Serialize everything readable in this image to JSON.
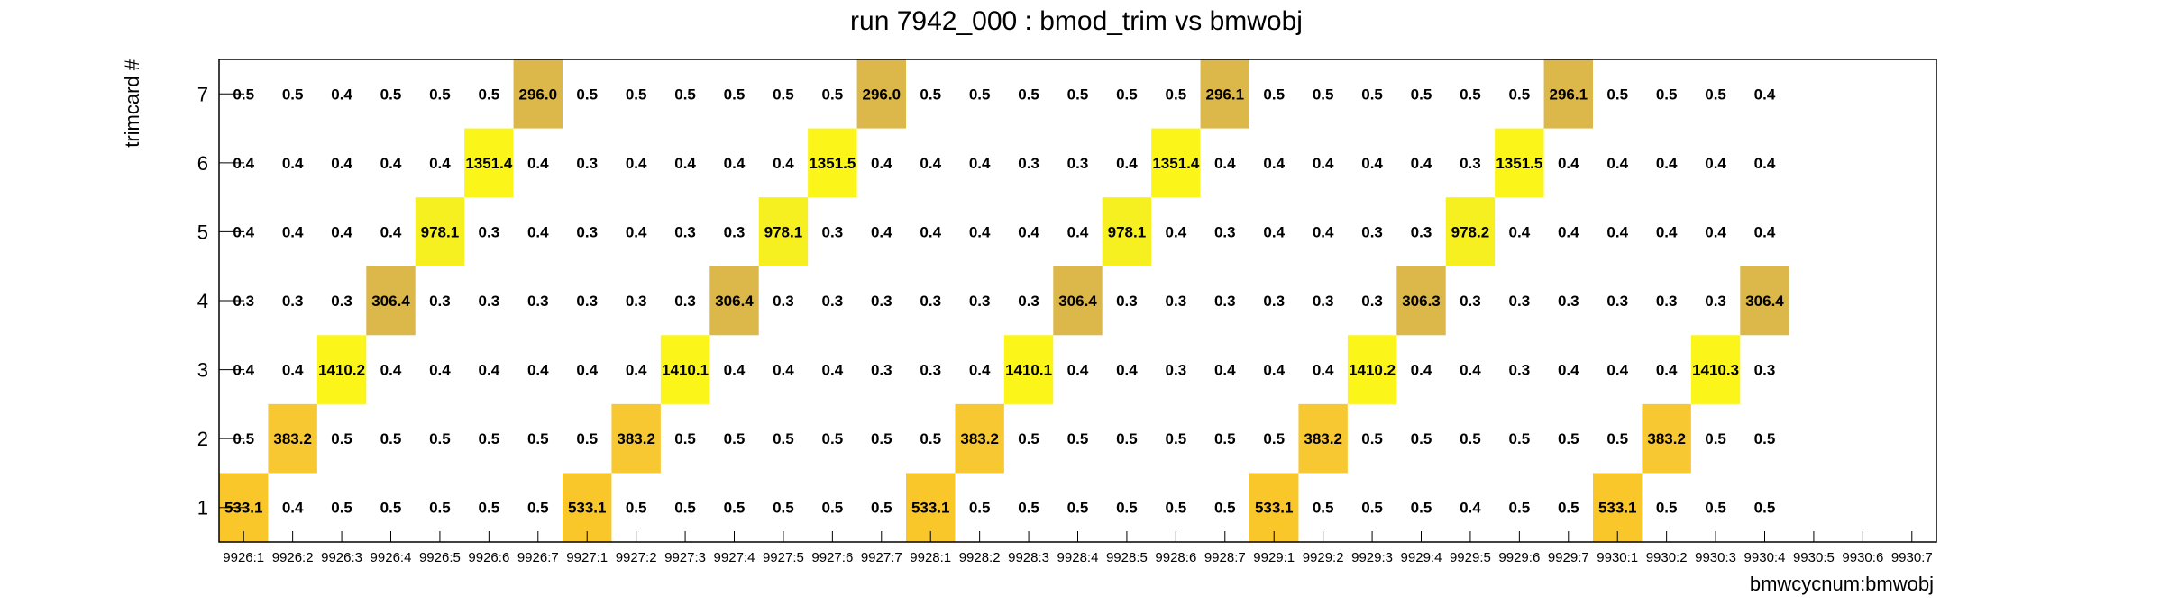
{
  "chart_data": {
    "type": "heatmap",
    "title": "run 7942_000 : bmod_trim vs bmwobj",
    "xlabel": "bmwcycnum:bmwobj",
    "ylabel": "trimcard #",
    "x_categories": [
      "9926:1",
      "9926:2",
      "9926:3",
      "9926:4",
      "9926:5",
      "9926:6",
      "9926:7",
      "9927:1",
      "9927:2",
      "9927:3",
      "9927:4",
      "9927:5",
      "9927:6",
      "9927:7",
      "9928:1",
      "9928:2",
      "9928:3",
      "9928:4",
      "9928:5",
      "9928:6",
      "9928:7",
      "9929:1",
      "9929:2",
      "9929:3",
      "9929:4",
      "9929:5",
      "9929:6",
      "9929:7",
      "9930:1",
      "9930:2",
      "9930:3",
      "9930:4",
      "9930:5",
      "9930:6",
      "9930:7"
    ],
    "y_categories": [
      "1",
      "2",
      "3",
      "4",
      "5",
      "6",
      "7"
    ],
    "grid": false,
    "legend": "none",
    "colors": {
      "low": "#ffffff",
      "c300": "#dcb84a",
      "c380": "#f7c832",
      "c530": "#f9c72a",
      "c980": "#f7f020",
      "c1350": "#fbf51a"
    },
    "values": [
      [
        533.1,
        0.4,
        0.5,
        0.5,
        0.5,
        0.5,
        0.5,
        533.1,
        0.5,
        0.5,
        0.5,
        0.5,
        0.5,
        0.5,
        533.1,
        0.5,
        0.5,
        0.5,
        0.5,
        0.5,
        0.5,
        533.1,
        0.5,
        0.5,
        0.5,
        0.4,
        0.5,
        0.5,
        533.1,
        0.5,
        0.5,
        0.5,
        null,
        null,
        null
      ],
      [
        0.5,
        383.2,
        0.5,
        0.5,
        0.5,
        0.5,
        0.5,
        0.5,
        383.2,
        0.5,
        0.5,
        0.5,
        0.5,
        0.5,
        0.5,
        383.2,
        0.5,
        0.5,
        0.5,
        0.5,
        0.5,
        0.5,
        383.2,
        0.5,
        0.5,
        0.5,
        0.5,
        0.5,
        0.5,
        383.2,
        0.5,
        0.5,
        null,
        null,
        null
      ],
      [
        0.4,
        0.4,
        1410.2,
        0.4,
        0.4,
        0.4,
        0.4,
        0.4,
        0.4,
        1410.1,
        0.4,
        0.4,
        0.4,
        0.3,
        0.3,
        0.4,
        1410.1,
        0.4,
        0.4,
        0.3,
        0.4,
        0.4,
        0.4,
        1410.2,
        0.4,
        0.4,
        0.3,
        0.4,
        0.4,
        0.4,
        1410.3,
        0.3,
        null,
        null,
        null
      ],
      [
        0.3,
        0.3,
        0.3,
        306.4,
        0.3,
        0.3,
        0.3,
        0.3,
        0.3,
        0.3,
        306.4,
        0.3,
        0.3,
        0.3,
        0.3,
        0.3,
        0.3,
        306.4,
        0.3,
        0.3,
        0.3,
        0.3,
        0.3,
        0.3,
        306.3,
        0.3,
        0.3,
        0.3,
        0.3,
        0.3,
        0.3,
        306.4,
        null,
        null,
        null
      ],
      [
        0.4,
        0.4,
        0.4,
        0.4,
        978.1,
        0.3,
        0.4,
        0.3,
        0.4,
        0.3,
        0.3,
        978.1,
        0.3,
        0.4,
        0.4,
        0.4,
        0.4,
        0.4,
        978.1,
        0.4,
        0.3,
        0.4,
        0.4,
        0.3,
        0.3,
        978.2,
        0.4,
        0.4,
        0.4,
        0.4,
        0.4,
        0.4,
        null,
        null,
        null
      ],
      [
        0.4,
        0.4,
        0.4,
        0.4,
        0.4,
        1351.4,
        0.4,
        0.3,
        0.4,
        0.4,
        0.4,
        0.4,
        1351.5,
        0.4,
        0.4,
        0.4,
        0.3,
        0.3,
        0.4,
        1351.4,
        0.4,
        0.4,
        0.4,
        0.4,
        0.4,
        0.3,
        1351.5,
        0.4,
        0.4,
        0.4,
        0.4,
        0.4,
        null,
        null,
        null
      ],
      [
        0.5,
        0.5,
        0.4,
        0.5,
        0.5,
        0.5,
        296.0,
        0.5,
        0.5,
        0.5,
        0.5,
        0.5,
        0.5,
        296.0,
        0.5,
        0.5,
        0.5,
        0.5,
        0.5,
        0.5,
        296.1,
        0.5,
        0.5,
        0.5,
        0.5,
        0.5,
        0.5,
        296.1,
        0.5,
        0.5,
        0.5,
        0.4,
        null,
        null,
        null
      ]
    ]
  }
}
